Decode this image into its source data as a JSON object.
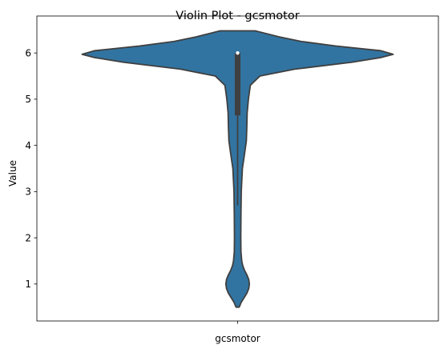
{
  "chart_data": {
    "type": "violin",
    "title": "Violin Plot - gcsmotor",
    "xlabel": "",
    "ylabel": "Value",
    "categories": [
      "gcsmotor"
    ],
    "ylim": [
      0.2,
      6.8
    ],
    "yticks": [
      1,
      2,
      3,
      4,
      5,
      6
    ],
    "grid": false,
    "color": "#3274a1",
    "edge_color": "#3f3f3f",
    "density_profile": [
      {
        "y": 0.5,
        "w": 0.01
      },
      {
        "y": 0.6,
        "w": 0.022
      },
      {
        "y": 0.7,
        "w": 0.04
      },
      {
        "y": 0.8,
        "w": 0.058
      },
      {
        "y": 0.9,
        "w": 0.07
      },
      {
        "y": 1.0,
        "w": 0.074
      },
      {
        "y": 1.1,
        "w": 0.07
      },
      {
        "y": 1.2,
        "w": 0.058
      },
      {
        "y": 1.3,
        "w": 0.043
      },
      {
        "y": 1.4,
        "w": 0.032
      },
      {
        "y": 1.5,
        "w": 0.026
      },
      {
        "y": 1.7,
        "w": 0.021
      },
      {
        "y": 2.0,
        "w": 0.02
      },
      {
        "y": 2.5,
        "w": 0.021
      },
      {
        "y": 3.0,
        "w": 0.023
      },
      {
        "y": 3.5,
        "w": 0.03
      },
      {
        "y": 3.8,
        "w": 0.043
      },
      {
        "y": 4.1,
        "w": 0.055
      },
      {
        "y": 4.4,
        "w": 0.058
      },
      {
        "y": 4.7,
        "w": 0.06
      },
      {
        "y": 5.0,
        "w": 0.068
      },
      {
        "y": 5.3,
        "w": 0.08
      },
      {
        "y": 5.5,
        "w": 0.14
      },
      {
        "y": 5.65,
        "w": 0.36
      },
      {
        "y": 5.8,
        "w": 0.72
      },
      {
        "y": 5.9,
        "w": 0.9
      },
      {
        "y": 5.97,
        "w": 0.98
      },
      {
        "y": 6.05,
        "w": 0.9
      },
      {
        "y": 6.15,
        "w": 0.62
      },
      {
        "y": 6.25,
        "w": 0.4
      },
      {
        "y": 6.35,
        "w": 0.26
      },
      {
        "y": 6.42,
        "w": 0.18
      },
      {
        "y": 6.48,
        "w": 0.11
      }
    ],
    "box": {
      "q1": 4.65,
      "median": 6.0,
      "q3": 6.0,
      "whisker_low": 2.7,
      "whisker_high": 6.0
    }
  }
}
